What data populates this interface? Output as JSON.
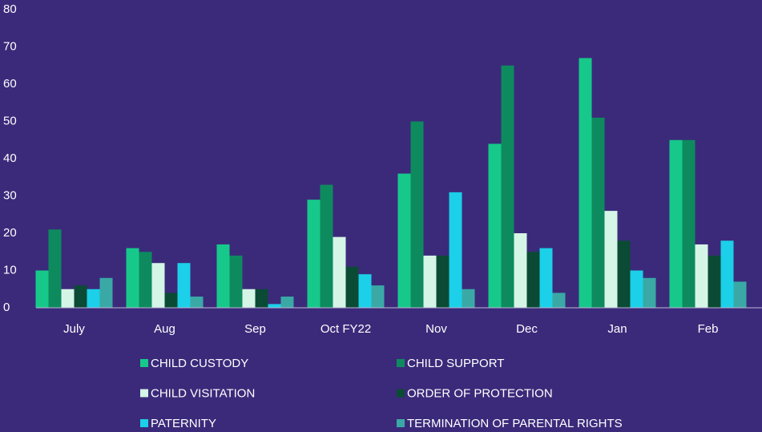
{
  "chart_data": {
    "type": "bar",
    "categories": [
      "July",
      "Aug",
      "Sep",
      "Oct FY22",
      "Nov",
      "Dec",
      "Jan",
      "Feb"
    ],
    "series": [
      {
        "name": "CHILD CUSTODY",
        "color": "#16c98b",
        "values": [
          10,
          16,
          17,
          29,
          36,
          44,
          67,
          45
        ]
      },
      {
        "name": "CHILD SUPPORT",
        "color": "#0d8b5e",
        "values": [
          21,
          15,
          14,
          33,
          50,
          65,
          51,
          45
        ]
      },
      {
        "name": "CHILD VISITATION",
        "color": "#d5f5e7",
        "values": [
          5,
          12,
          5,
          19,
          14,
          20,
          26,
          17
        ]
      },
      {
        "name": "ORDER OF PROTECTION",
        "color": "#0b4a34",
        "values": [
          6,
          4,
          5,
          11,
          14,
          15,
          18,
          14
        ]
      },
      {
        "name": "PATERNITY",
        "color": "#1bd0e8",
        "values": [
          5,
          12,
          1,
          9,
          31,
          16,
          10,
          18
        ]
      },
      {
        "name": "TERMINATION OF PARENTAL RIGHTS",
        "color": "#3aa9a6",
        "values": [
          8,
          3,
          3,
          6,
          5,
          4,
          8,
          7
        ]
      }
    ],
    "ylim": [
      0,
      80
    ],
    "yticks": [
      0,
      10,
      20,
      30,
      40,
      50,
      60,
      70,
      80
    ],
    "grid": false,
    "legend": "bottom"
  }
}
